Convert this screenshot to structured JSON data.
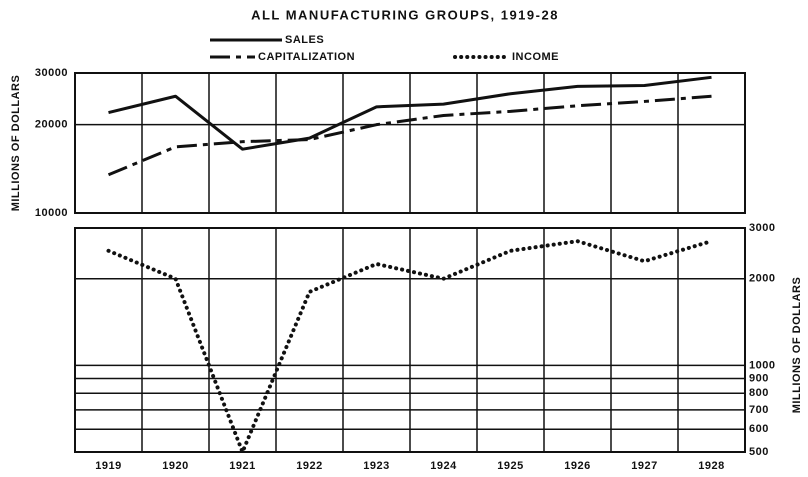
{
  "chart_data": {
    "type": "line",
    "title": "ALL MANUFACTURING GROUPS, 1919-28",
    "ylabel": "MILLIONS OF DOLLARS",
    "y2label": "MILLIONS OF DOLLARS",
    "categories": [
      "1919",
      "1920",
      "1921",
      "1922",
      "1923",
      "1924",
      "1925",
      "1926",
      "1927",
      "1928"
    ],
    "series": [
      {
        "name": "SALES",
        "color": "#111111",
        "style": "solid",
        "axis": "y",
        "values": [
          22000,
          25000,
          16500,
          18000,
          23000,
          23500,
          25500,
          27000,
          27200,
          29000
        ]
      },
      {
        "name": "CAPITALIZATION",
        "color": "#111111",
        "style": "dash-dot",
        "axis": "y",
        "values": [
          13500,
          16800,
          17500,
          17800,
          20000,
          21500,
          22200,
          23200,
          24000,
          25000
        ]
      },
      {
        "name": "INCOME",
        "color": "#111111",
        "style": "dotted",
        "axis": "y2",
        "values": [
          2500,
          2000,
          500,
          1800,
          2250,
          2000,
          2500,
          2700,
          2300,
          2700
        ]
      }
    ],
    "ylim": [
      10000,
      30000
    ],
    "yticks": [
      10000,
      20000,
      30000
    ],
    "y2lim": [
      500,
      3000
    ],
    "y2ticks": [
      500,
      600,
      700,
      800,
      900,
      1000,
      2000,
      3000
    ],
    "log_scale": true,
    "grid": true
  }
}
